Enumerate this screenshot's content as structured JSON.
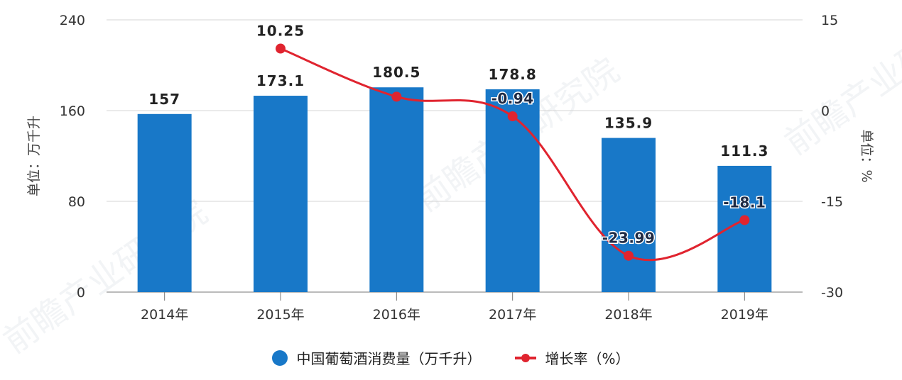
{
  "chart_data": {
    "type": "bar+line",
    "title": "",
    "categories": [
      "2014年",
      "2015年",
      "2016年",
      "2017年",
      "2018年",
      "2019年"
    ],
    "series": [
      {
        "name": "中国葡萄酒消费量（万千升）",
        "type": "bar",
        "axis": "left",
        "color": "#1878c8",
        "values": [
          157,
          173.1,
          180.5,
          178.8,
          135.9,
          111.3
        ],
        "labels": [
          "157",
          "173.1",
          "180.5",
          "178.8",
          "135.9",
          "111.3"
        ]
      },
      {
        "name": "增长率（%）",
        "type": "line",
        "axis": "right",
        "color": "#e0242f",
        "values": [
          null,
          10.25,
          2.3,
          -0.94,
          -23.99,
          -18.1
        ],
        "labels": [
          "",
          "10.25",
          "",
          "-0.94",
          "-23.99",
          "-18.1"
        ]
      }
    ],
    "ylabel": "单位：万千升",
    "y2label": "单位：%",
    "ylim": [
      0,
      240
    ],
    "y_ticks": [
      "240",
      "160",
      "80",
      "0"
    ],
    "y2lim": [
      -30,
      15
    ],
    "y2_ticks": [
      "15",
      "0",
      "-15",
      "-30"
    ],
    "grid": true,
    "legend_position": "bottom"
  },
  "legend": {
    "bar_label": "中国葡萄酒消费量（万千升）",
    "line_label": "增长率（%）"
  },
  "watermark": "前瞻产业研究院"
}
